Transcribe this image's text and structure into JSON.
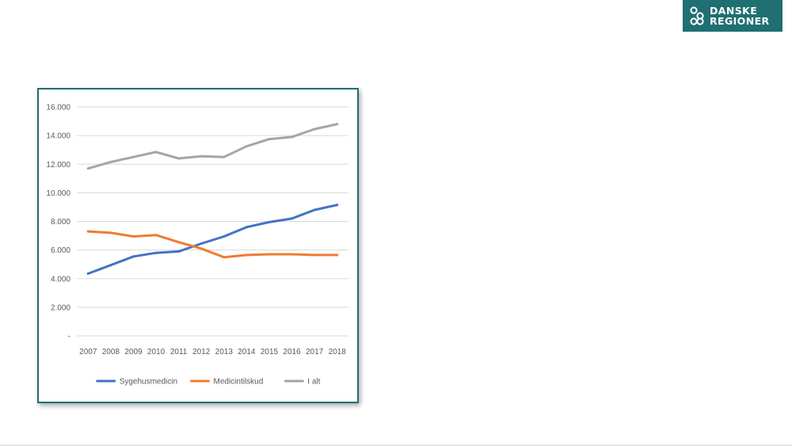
{
  "logo": {
    "line1": "DANSKE",
    "line2": "REGIONER",
    "background": "#1f6f73"
  },
  "chart_data": {
    "type": "line",
    "title": "",
    "xlabel": "",
    "ylabel": "",
    "x": [
      "2007",
      "2008",
      "2009",
      "2010",
      "2011",
      "2012",
      "2013",
      "2014",
      "2015",
      "2016",
      "2017",
      "2018"
    ],
    "ylim": [
      0,
      16000
    ],
    "yticks": [
      "-",
      "2.000",
      "4.000",
      "6.000",
      "8.000",
      "10.000",
      "12.000",
      "14.000",
      "16.000"
    ],
    "grid": true,
    "legend_position": "bottom",
    "series": [
      {
        "name": "Sygehusmedicin",
        "color": "#4472c4",
        "values": [
          4350,
          4950,
          5550,
          5800,
          5900,
          6450,
          6950,
          7600,
          7950,
          8200,
          8800,
          9150
        ]
      },
      {
        "name": "Medicintilskud",
        "color": "#ed7d31",
        "values": [
          7300,
          7200,
          6950,
          7050,
          6550,
          6100,
          5500,
          5650,
          5700,
          5700,
          5650,
          5650
        ]
      },
      {
        "name": "I alt",
        "color": "#a5a5a5",
        "values": [
          11700,
          12150,
          12500,
          12850,
          12400,
          12550,
          12500,
          13250,
          13750,
          13900,
          14450,
          14800
        ]
      }
    ]
  }
}
